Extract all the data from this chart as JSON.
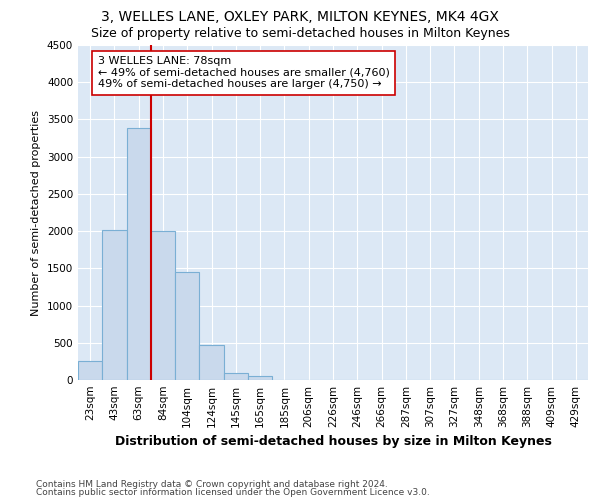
{
  "title": "3, WELLES LANE, OXLEY PARK, MILTON KEYNES, MK4 4GX",
  "subtitle": "Size of property relative to semi-detached houses in Milton Keynes",
  "xlabel": "Distribution of semi-detached houses by size in Milton Keynes",
  "ylabel": "Number of semi-detached properties",
  "footer1": "Contains HM Land Registry data © Crown copyright and database right 2024.",
  "footer2": "Contains public sector information licensed under the Open Government Licence v3.0.",
  "categories": [
    "23sqm",
    "43sqm",
    "63sqm",
    "84sqm",
    "104sqm",
    "124sqm",
    "145sqm",
    "165sqm",
    "185sqm",
    "206sqm",
    "226sqm",
    "246sqm",
    "266sqm",
    "287sqm",
    "307sqm",
    "327sqm",
    "348sqm",
    "368sqm",
    "388sqm",
    "409sqm",
    "429sqm"
  ],
  "values": [
    250,
    2020,
    3380,
    2000,
    1450,
    470,
    100,
    60,
    0,
    0,
    0,
    0,
    0,
    0,
    0,
    0,
    0,
    0,
    0,
    0,
    0
  ],
  "bar_color": "#c9d9ec",
  "bar_edge_color": "#7aafd4",
  "property_size": "78sqm",
  "smaller_pct": 49,
  "smaller_count": 4760,
  "larger_pct": 49,
  "larger_count": 4750,
  "annotation_box_color": "#ffffff",
  "annotation_box_edge_color": "#cc0000",
  "vline_color": "#cc0000",
  "vline_x": 2.5,
  "ylim": [
    0,
    4500
  ],
  "yticks": [
    0,
    500,
    1000,
    1500,
    2000,
    2500,
    3000,
    3500,
    4000,
    4500
  ],
  "fig_bg_color": "#ffffff",
  "plot_bg_color": "#dce8f5",
  "grid_color": "#ffffff",
  "title_fontsize": 10,
  "subtitle_fontsize": 9,
  "xlabel_fontsize": 9,
  "ylabel_fontsize": 8,
  "tick_fontsize": 7.5,
  "annotation_fontsize": 8,
  "footer_fontsize": 6.5
}
